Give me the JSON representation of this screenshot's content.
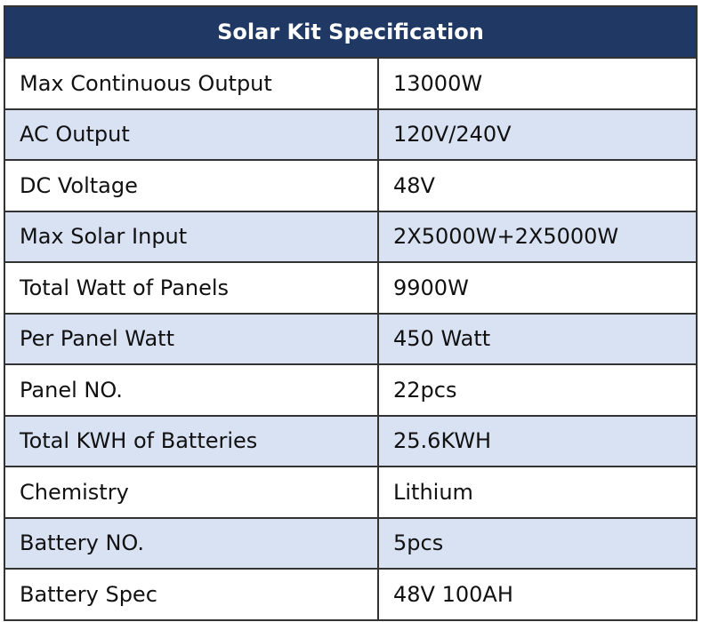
{
  "table": {
    "title": "Solar Kit Specification",
    "header_color": "#1f3864",
    "alt_row_color": "#d9e2f3",
    "rows": [
      {
        "label": "Max Continuous Output",
        "value": "13000W"
      },
      {
        "label": "AC Output",
        "value": "120V/240V"
      },
      {
        "label": "DC Voltage",
        "value": "48V"
      },
      {
        "label": "Max Solar Input",
        "value": "2X5000W+2X5000W"
      },
      {
        "label": "Total Watt of Panels",
        "value": "9900W"
      },
      {
        "label": "Per Panel Watt",
        "value": "450 Watt"
      },
      {
        "label": "Panel NO.",
        "value": "22pcs"
      },
      {
        "label": "Total KWH of Batteries",
        "value": "25.6KWH"
      },
      {
        "label": "Chemistry",
        "value": "Lithium"
      },
      {
        "label": "Battery NO.",
        "value": "5pcs"
      },
      {
        "label": "Battery Spec",
        "value": "48V 100AH"
      }
    ]
  }
}
